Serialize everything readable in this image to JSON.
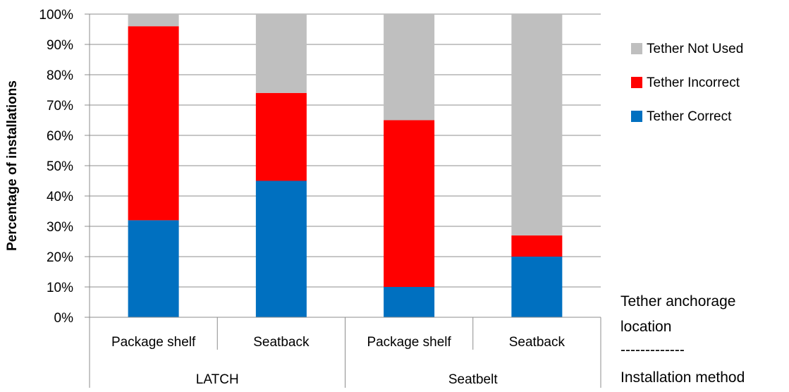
{
  "chart_data": {
    "type": "bar",
    "stacked": true,
    "percent_axis": true,
    "ylabel": "Percentage of installations",
    "ylim": [
      0,
      100
    ],
    "yticks": [
      "0%",
      "10%",
      "20%",
      "30%",
      "40%",
      "50%",
      "60%",
      "70%",
      "80%",
      "90%",
      "100%"
    ],
    "grid": true,
    "legend_position": "right",
    "groups": [
      {
        "label": "LATCH",
        "categories": [
          "Package shelf",
          "Seatback"
        ]
      },
      {
        "label": "Seatbelt",
        "categories": [
          "Package shelf",
          "Seatback"
        ]
      }
    ],
    "categories": [
      "Package shelf",
      "Seatback",
      "Package shelf",
      "Seatback"
    ],
    "series": [
      {
        "name": "Tether Correct",
        "color": "#0070C0",
        "values": [
          32,
          45,
          10,
          20
        ]
      },
      {
        "name": "Tether Incorrect",
        "color": "#FF0000",
        "values": [
          64,
          29,
          55,
          7
        ]
      },
      {
        "name": "Tether Not Used",
        "color": "#BFBFBF",
        "values": [
          4,
          26,
          35,
          73
        ]
      }
    ],
    "legend_order": [
      "Tether Not Used",
      "Tether Incorrect",
      "Tether Correct"
    ]
  },
  "axis_note": {
    "line1": "Tether anchorage",
    "line2": "location",
    "separator": "-------------",
    "line3": "Installation method"
  }
}
